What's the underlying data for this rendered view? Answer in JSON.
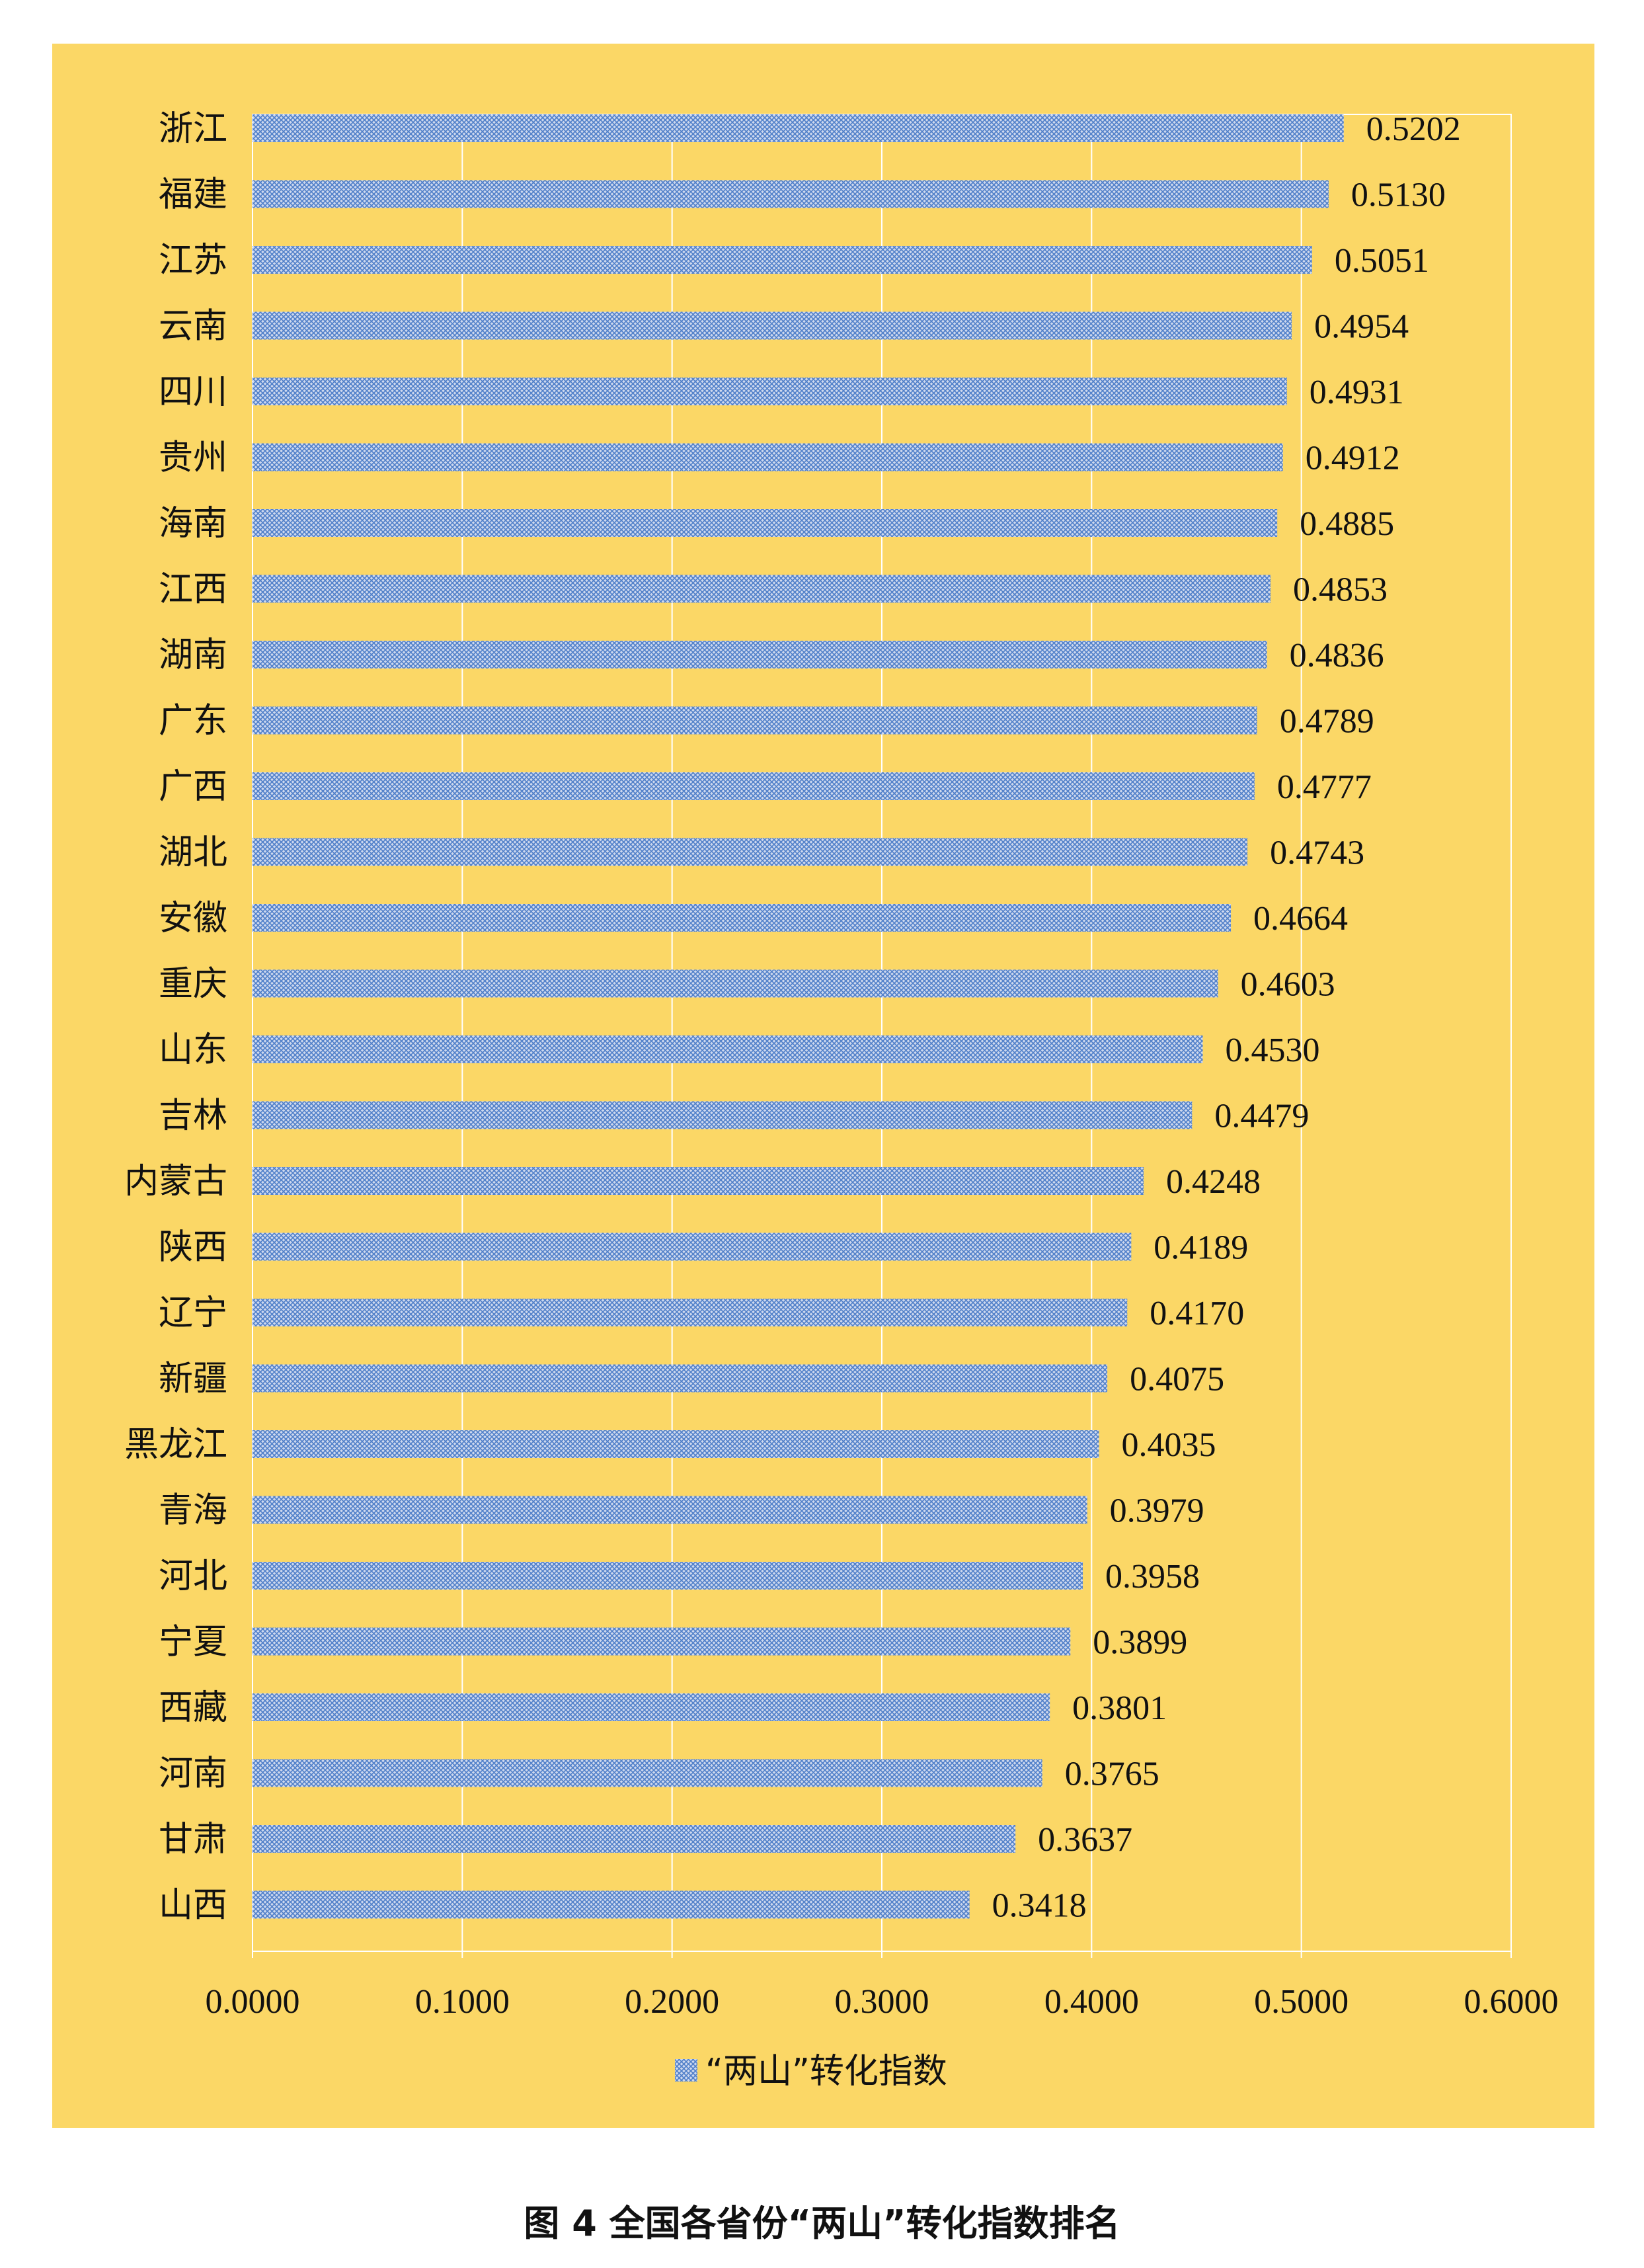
{
  "caption": "图 4  全国各省份“两山”转化指数排名",
  "colors": {
    "background": "#fbd766",
    "bar": "#4f7fc9",
    "grid": "#ffffff"
  },
  "chart_data": {
    "type": "bar",
    "orientation": "horizontal",
    "title": "",
    "xlabel": "",
    "ylabel": "",
    "xlim": [
      0,
      0.6
    ],
    "x_ticks": [
      "0.0000",
      "0.1000",
      "0.2000",
      "0.3000",
      "0.4000",
      "0.5000",
      "0.6000"
    ],
    "grid": "vertical",
    "legend_position": "bottom",
    "categories": [
      "浙江",
      "福建",
      "江苏",
      "云南",
      "四川",
      "贵州",
      "海南",
      "江西",
      "湖南",
      "广东",
      "广西",
      "湖北",
      "安徽",
      "重庆",
      "山东",
      "吉林",
      "内蒙古",
      "陕西",
      "辽宁",
      "新疆",
      "黑龙江",
      "青海",
      "河北",
      "宁夏",
      "西藏",
      "河南",
      "甘肃",
      "山西"
    ],
    "value_labels": [
      "0.5202",
      "0.5130",
      "0.5051",
      "0.4954",
      "0.4931",
      "0.4912",
      "0.4885",
      "0.4853",
      "0.4836",
      "0.4789",
      "0.4777",
      "0.4743",
      "0.4664",
      "0.4603",
      "0.4530",
      "0.4479",
      "0.4248",
      "0.4189",
      "0.4170",
      "0.4075",
      "0.4035",
      "0.3979",
      "0.3958",
      "0.3899",
      "0.3801",
      "0.3765",
      "0.3637",
      "0.3418"
    ],
    "series": [
      {
        "name": "“两山”转化指数",
        "values": [
          0.5202,
          0.513,
          0.5051,
          0.4954,
          0.4931,
          0.4912,
          0.4885,
          0.4853,
          0.4836,
          0.4789,
          0.4777,
          0.4743,
          0.4664,
          0.4603,
          0.453,
          0.4479,
          0.4248,
          0.4189,
          0.417,
          0.4075,
          0.4035,
          0.3979,
          0.3958,
          0.3899,
          0.3801,
          0.3765,
          0.3637,
          0.3418
        ]
      }
    ]
  }
}
